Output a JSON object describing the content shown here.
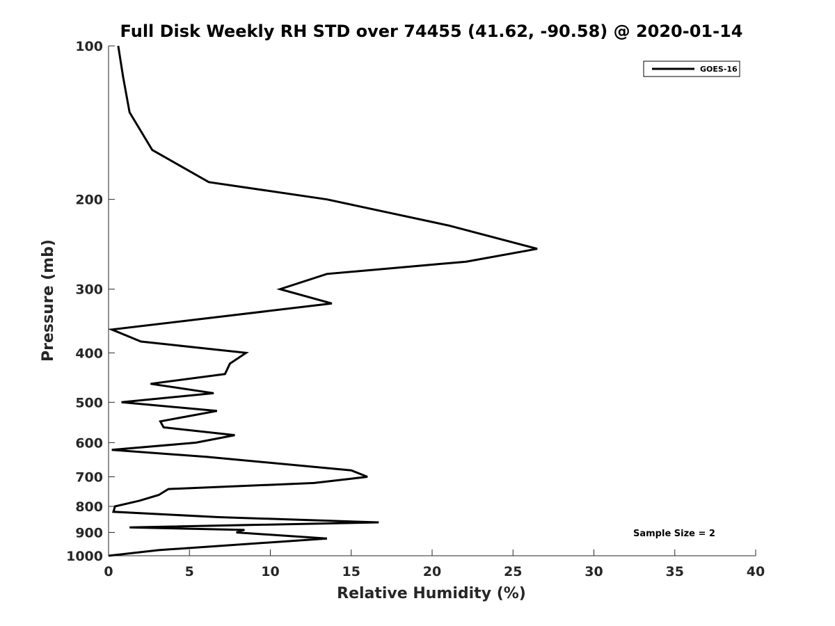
{
  "chart_data": {
    "type": "line",
    "title": "Full Disk Weekly RH STD over 74455 (41.62, -90.58) @ 2020-01-14",
    "xlabel": "Relative Humidity (%)",
    "ylabel": "Pressure (mb)",
    "xlim": [
      0,
      40
    ],
    "ylim": [
      100,
      1000
    ],
    "y_scale": "log",
    "y_reversed": true,
    "grid": false,
    "legend_position": "top-right",
    "x_ticks": [
      "0",
      "5",
      "10",
      "15",
      "20",
      "25",
      "30",
      "35",
      "40"
    ],
    "y_ticks": [
      "100",
      "200",
      "300",
      "400",
      "500",
      "600",
      "700",
      "800",
      "900",
      "1000"
    ],
    "series": [
      {
        "name": "GOES-16",
        "color": "#000000",
        "points": [
          [
            0.6,
            100
          ],
          [
            0.9,
            115
          ],
          [
            1.3,
            135
          ],
          [
            2.7,
            160
          ],
          [
            6.2,
            185
          ],
          [
            13.5,
            200
          ],
          [
            21.0,
            225
          ],
          [
            26.5,
            250
          ],
          [
            22.1,
            265
          ],
          [
            13.5,
            280
          ],
          [
            10.6,
            300
          ],
          [
            13.8,
            320
          ],
          [
            0.2,
            360
          ],
          [
            2.0,
            380
          ],
          [
            8.5,
            400
          ],
          [
            7.5,
            420
          ],
          [
            7.2,
            440
          ],
          [
            2.6,
            460
          ],
          [
            6.5,
            480
          ],
          [
            0.8,
            500
          ],
          [
            6.7,
            520
          ],
          [
            3.2,
            545
          ],
          [
            3.4,
            560
          ],
          [
            7.8,
            580
          ],
          [
            5.4,
            600
          ],
          [
            0.2,
            620
          ],
          [
            6.1,
            640
          ],
          [
            15.0,
            680
          ],
          [
            16.0,
            700
          ],
          [
            12.7,
            720
          ],
          [
            3.7,
            740
          ],
          [
            3.1,
            760
          ],
          [
            1.9,
            780
          ],
          [
            0.4,
            800
          ],
          [
            0.3,
            820
          ],
          [
            6.8,
            840
          ],
          [
            16.7,
            860
          ],
          [
            1.3,
            880
          ],
          [
            8.4,
            890
          ],
          [
            7.9,
            900
          ],
          [
            13.5,
            925
          ],
          [
            3.1,
            975
          ],
          [
            0.0,
            1000
          ]
        ]
      }
    ],
    "annotations": [
      "Sample Size = 2"
    ]
  }
}
